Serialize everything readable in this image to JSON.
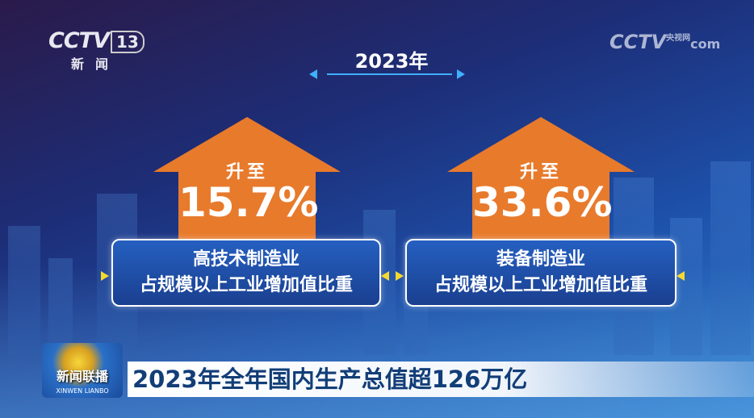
{
  "channel_logo": {
    "brand": "CCTV",
    "number": "13",
    "name": "新闻"
  },
  "watermark": {
    "brand": "CCTV",
    "site": "com",
    "cn": "央视网"
  },
  "year": "2023年",
  "cards": [
    {
      "rise": "升至",
      "value": "15.7%",
      "label_line1": "高技术制造业",
      "label_line2": "占规模以上工业增加值比重"
    },
    {
      "rise": "升至",
      "value": "33.6%",
      "label_line1": "装备制造业",
      "label_line2": "占规模以上工业增加值比重"
    }
  ],
  "program": {
    "name_cn": "新闻联播",
    "name_pinyin": "XINWEN LIANBO"
  },
  "headline": "2023年全年国内生产总值超126万亿",
  "colors": {
    "house": "#e87a2c",
    "headline_text": "#123e78",
    "accent": "#3fb0ff"
  }
}
